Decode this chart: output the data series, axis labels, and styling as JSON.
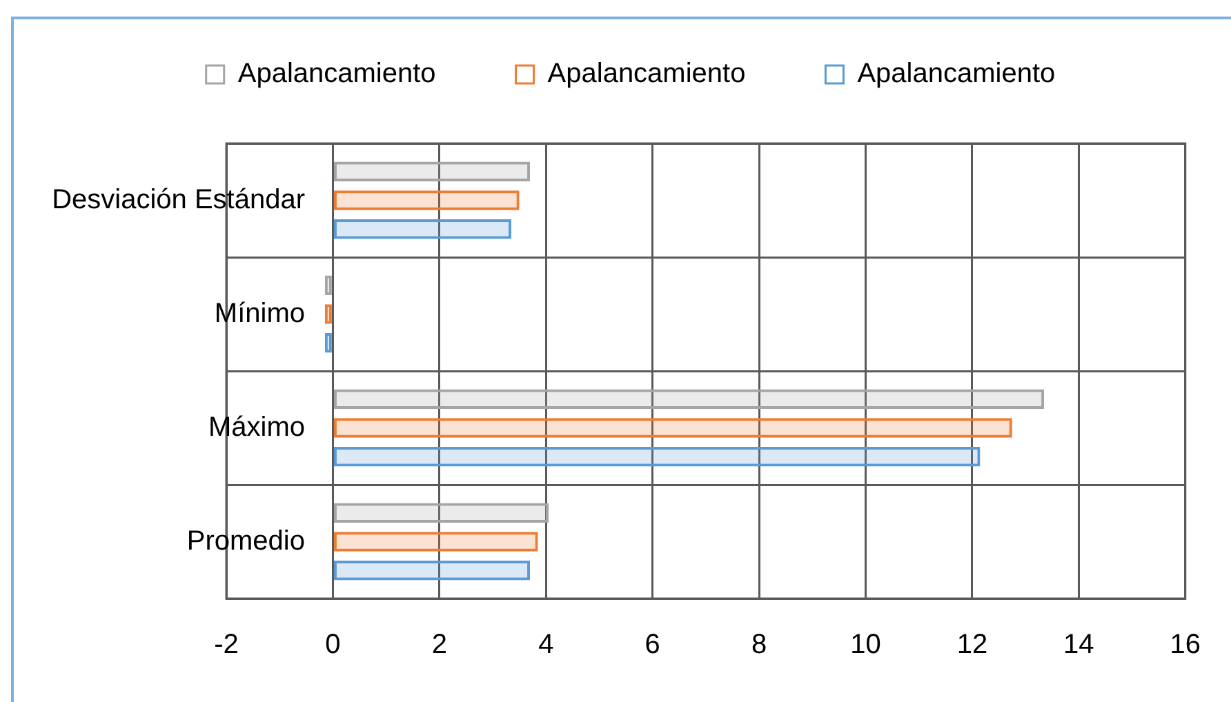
{
  "chart_data": {
    "type": "bar",
    "orientation": "horizontal",
    "categories": [
      "Desviación Estándar",
      "Mínimo",
      "Máximo",
      "Promedio"
    ],
    "series": [
      {
        "name": "Apalancamiento",
        "color": "#a5a5a5",
        "values": [
          3.7,
          -0.15,
          13.35,
          4.05
        ]
      },
      {
        "name": "Apalancamiento",
        "color": "#ed7d31",
        "values": [
          3.5,
          -0.15,
          12.75,
          3.85
        ]
      },
      {
        "name": "Apalancamiento",
        "color": "#5b9bd5",
        "values": [
          3.35,
          -0.15,
          12.15,
          3.7
        ]
      }
    ],
    "xlim": [
      -2,
      16
    ],
    "xticks": [
      -2,
      0,
      2,
      4,
      6,
      8,
      10,
      12,
      14,
      16
    ],
    "grid": true,
    "legend": "top"
  }
}
